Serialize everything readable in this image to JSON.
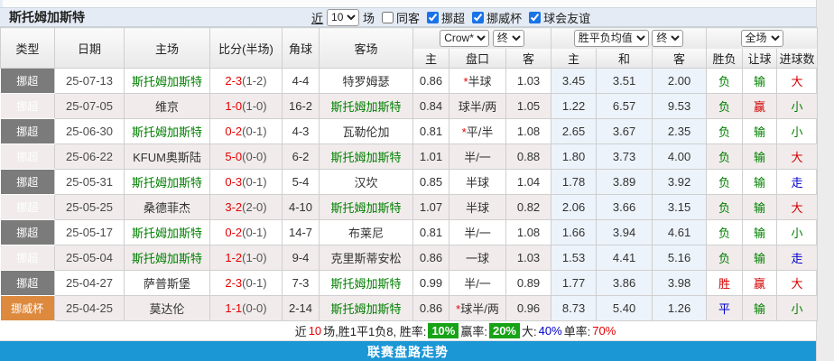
{
  "title": "斯托姆加斯特",
  "toolbar": {
    "recent_label": "近",
    "recent_value": "10",
    "matches_label": "场",
    "same_guest_label": "同客",
    "same_guest_checked": false,
    "leagues": [
      {
        "label": "挪超",
        "checked": true
      },
      {
        "label": "挪威杯",
        "checked": true
      },
      {
        "label": "球会友谊",
        "checked": true
      }
    ]
  },
  "filters": {
    "bookmaker": "Crow*",
    "bookmaker_time": "终",
    "odds_type": "胜平负均值",
    "odds_time": "终",
    "scope": "全场"
  },
  "columns": {
    "main": [
      "类型",
      "日期",
      "主场",
      "比分(半场)",
      "角球",
      "客场"
    ],
    "sub": [
      "主",
      "盘口",
      "客",
      "主",
      "和",
      "客",
      "胜负",
      "让球",
      "进球数"
    ]
  },
  "rows": [
    {
      "league": "挪超",
      "league_color": "gray",
      "date": "25-07-13",
      "home": "斯托姆加斯特",
      "score": "2-3",
      "half": "(1-2)",
      "corners": "4-4",
      "away": "特罗姆瑟",
      "home_odds": "0.86",
      "handicap": "*半球",
      "away_odds": "1.03",
      "win": "3.45",
      "draw": "3.51",
      "lose": "2.00",
      "result": "负",
      "handicap_result": "输",
      "goals": "大"
    },
    {
      "league": "挪超",
      "league_color": "gray",
      "date": "25-07-05",
      "home": "维京",
      "score": "1-0",
      "half": "(1-0)",
      "corners": "16-2",
      "away": "斯托姆加斯特",
      "home_odds": "0.84",
      "handicap": "球半/两",
      "away_odds": "1.05",
      "win": "1.22",
      "draw": "6.57",
      "lose": "9.53",
      "result": "负",
      "handicap_result": "赢",
      "goals": "小"
    },
    {
      "league": "挪超",
      "league_color": "gray",
      "date": "25-06-30",
      "home": "斯托姆加斯特",
      "score": "0-2",
      "half": "(0-1)",
      "corners": "4-3",
      "away": "瓦勒伦加",
      "home_odds": "0.81",
      "handicap": "*平/半",
      "away_odds": "1.08",
      "win": "2.65",
      "draw": "3.67",
      "lose": "2.35",
      "result": "负",
      "handicap_result": "输",
      "goals": "小"
    },
    {
      "league": "挪超",
      "league_color": "gray",
      "date": "25-06-22",
      "home": "KFUM奥斯陆",
      "score": "5-0",
      "half": "(0-0)",
      "corners": "6-2",
      "away": "斯托姆加斯特",
      "home_odds": "1.01",
      "handicap": "半/一",
      "away_odds": "0.88",
      "win": "1.80",
      "draw": "3.73",
      "lose": "4.00",
      "result": "负",
      "handicap_result": "输",
      "goals": "大"
    },
    {
      "league": "挪超",
      "league_color": "gray",
      "date": "25-05-31",
      "home": "斯托姆加斯特",
      "score": "0-3",
      "half": "(0-1)",
      "corners": "5-4",
      "away": "汉坎",
      "home_odds": "0.85",
      "handicap": "半球",
      "away_odds": "1.04",
      "win": "1.78",
      "draw": "3.89",
      "lose": "3.92",
      "result": "负",
      "handicap_result": "输",
      "goals": "走"
    },
    {
      "league": "挪超",
      "league_color": "gray",
      "date": "25-05-25",
      "home": "桑德菲杰",
      "score": "3-2",
      "half": "(2-0)",
      "corners": "4-10",
      "away": "斯托姆加斯特",
      "home_odds": "1.07",
      "handicap": "半球",
      "away_odds": "0.82",
      "win": "2.06",
      "draw": "3.66",
      "lose": "3.15",
      "result": "负",
      "handicap_result": "输",
      "goals": "大"
    },
    {
      "league": "挪超",
      "league_color": "gray",
      "date": "25-05-17",
      "home": "斯托姆加斯特",
      "score": "0-2",
      "half": "(0-1)",
      "corners": "14-7",
      "away": "布莱尼",
      "home_odds": "0.81",
      "handicap": "半/一",
      "away_odds": "1.08",
      "win": "1.66",
      "draw": "3.94",
      "lose": "4.61",
      "result": "负",
      "handicap_result": "输",
      "goals": "小"
    },
    {
      "league": "挪超",
      "league_color": "gray",
      "date": "25-05-04",
      "home": "斯托姆加斯特",
      "score": "1-2",
      "half": "(1-0)",
      "corners": "9-4",
      "away": "克里斯蒂安松",
      "home_odds": "0.86",
      "handicap": "一球",
      "away_odds": "1.03",
      "win": "1.53",
      "draw": "4.41",
      "lose": "5.16",
      "result": "负",
      "handicap_result": "输",
      "goals": "走"
    },
    {
      "league": "挪超",
      "league_color": "gray",
      "date": "25-04-27",
      "home": "萨普斯堡",
      "score": "2-3",
      "half": "(0-1)",
      "corners": "7-3",
      "away": "斯托姆加斯特",
      "home_odds": "0.99",
      "handicap": "半/一",
      "away_odds": "0.89",
      "win": "1.77",
      "draw": "3.86",
      "lose": "3.98",
      "result": "胜",
      "handicap_result": "赢",
      "goals": "大"
    },
    {
      "league": "挪威杯",
      "league_color": "orange",
      "date": "25-04-25",
      "home": "莫达伦",
      "score": "1-1",
      "half": "(0-0)",
      "corners": "2-14",
      "away": "斯托姆加斯特",
      "home_odds": "0.86",
      "handicap": "*球半/两",
      "away_odds": "0.96",
      "win": "8.73",
      "draw": "5.40",
      "lose": "1.26",
      "result": "平",
      "handicap_result": "输",
      "goals": "小"
    }
  ],
  "summary": {
    "part1": "近",
    "count": "10",
    "part2": "场,胜1平1负8, 胜率:",
    "win_rate": "10%",
    "part3": "赢率:",
    "profit_rate": "20%",
    "part4": "大:",
    "big_rate": "40%",
    "part5": "单率:",
    "single_rate": "70%"
  },
  "footer": {
    "label": "联赛盘路走势"
  }
}
